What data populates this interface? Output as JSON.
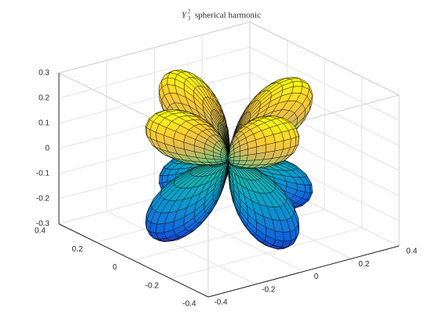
{
  "chart_data": {
    "type": "surface",
    "title": {
      "symbol": "Y",
      "superscript": "2",
      "subscript": "3",
      "text": "spherical harmonic"
    },
    "xlim": [
      -0.4,
      0.4
    ],
    "xticks": [
      -0.4,
      -0.2,
      0,
      0.2,
      0.4
    ],
    "ylim": [
      -0.4,
      0.4
    ],
    "yticks": [
      -0.4,
      -0.2,
      0,
      0.2,
      0.4
    ],
    "zlim": [
      -0.3,
      0.3
    ],
    "zticks": [
      -0.3,
      -0.2,
      -0.1,
      0,
      0.1,
      0.2,
      0.3
    ],
    "grid": true
  }
}
